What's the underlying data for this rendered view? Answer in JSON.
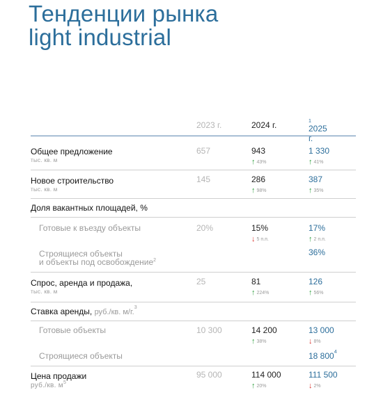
{
  "title": "Тенденции рынка\nlight industrial",
  "header": {
    "y2023": "2023 г.",
    "y2024": "2024 г.",
    "y2025": "2025 г.",
    "y2025_note": "1"
  },
  "rows": {
    "supply": {
      "label": "Общее предложение",
      "unit": "тыс. кв. м",
      "v2023": "657",
      "v2024": "943",
      "c2024": "43%",
      "v2025": "1 330",
      "c2025": "41%"
    },
    "construction": {
      "label": "Новое строительство",
      "unit": "тыс. кв. м",
      "v2023": "145",
      "v2024": "286",
      "c2024": "98%",
      "v2025": "387",
      "c2025": "35%"
    },
    "vacancy": {
      "label": "Доля вакантных площадей, %"
    },
    "ready": {
      "label": "Готовые к въезду объекты",
      "v2023": "20%",
      "v2024": "15%",
      "c2024": "5 п.п.",
      "v2025": "17%",
      "c2025": "2 п.п."
    },
    "under": {
      "label": "Строящиеся объекты\nи объекты под освобождение",
      "note": "2",
      "v2025": "36%"
    },
    "demand": {
      "label": "Спрос, аренда и продажа,",
      "unit": "тыс. кв. м",
      "v2023": "25",
      "v2024": "81",
      "c2024": "224%",
      "v2025": "126",
      "c2025": "56%"
    },
    "rent": {
      "label": "Ставка аренды,",
      "unit": "руб./кв. м/г.",
      "note": "3"
    },
    "rent_ready": {
      "label": "Готовые объекты",
      "v2023": "10 300",
      "v2024": "14 200",
      "c2024": "38%",
      "v2025": "13 000",
      "c2025": "8%"
    },
    "rent_under": {
      "label": "Строящиеся объекты",
      "v2025": "18 800",
      "note": "4"
    },
    "price": {
      "label": "Цена продажи",
      "unit": "руб./кв. м",
      "note": "5",
      "v2023": "95 000",
      "v2024": "114 000",
      "c2024": "20%",
      "v2025": "111 500",
      "c2025": "2%"
    }
  },
  "colors": {
    "accent": "#2c6e9b",
    "up": "#2a9d3a",
    "down": "#d9302b",
    "muted": "#b5b5b5"
  },
  "icons": {
    "up": "arrow-up-icon",
    "down": "arrow-down-icon"
  }
}
